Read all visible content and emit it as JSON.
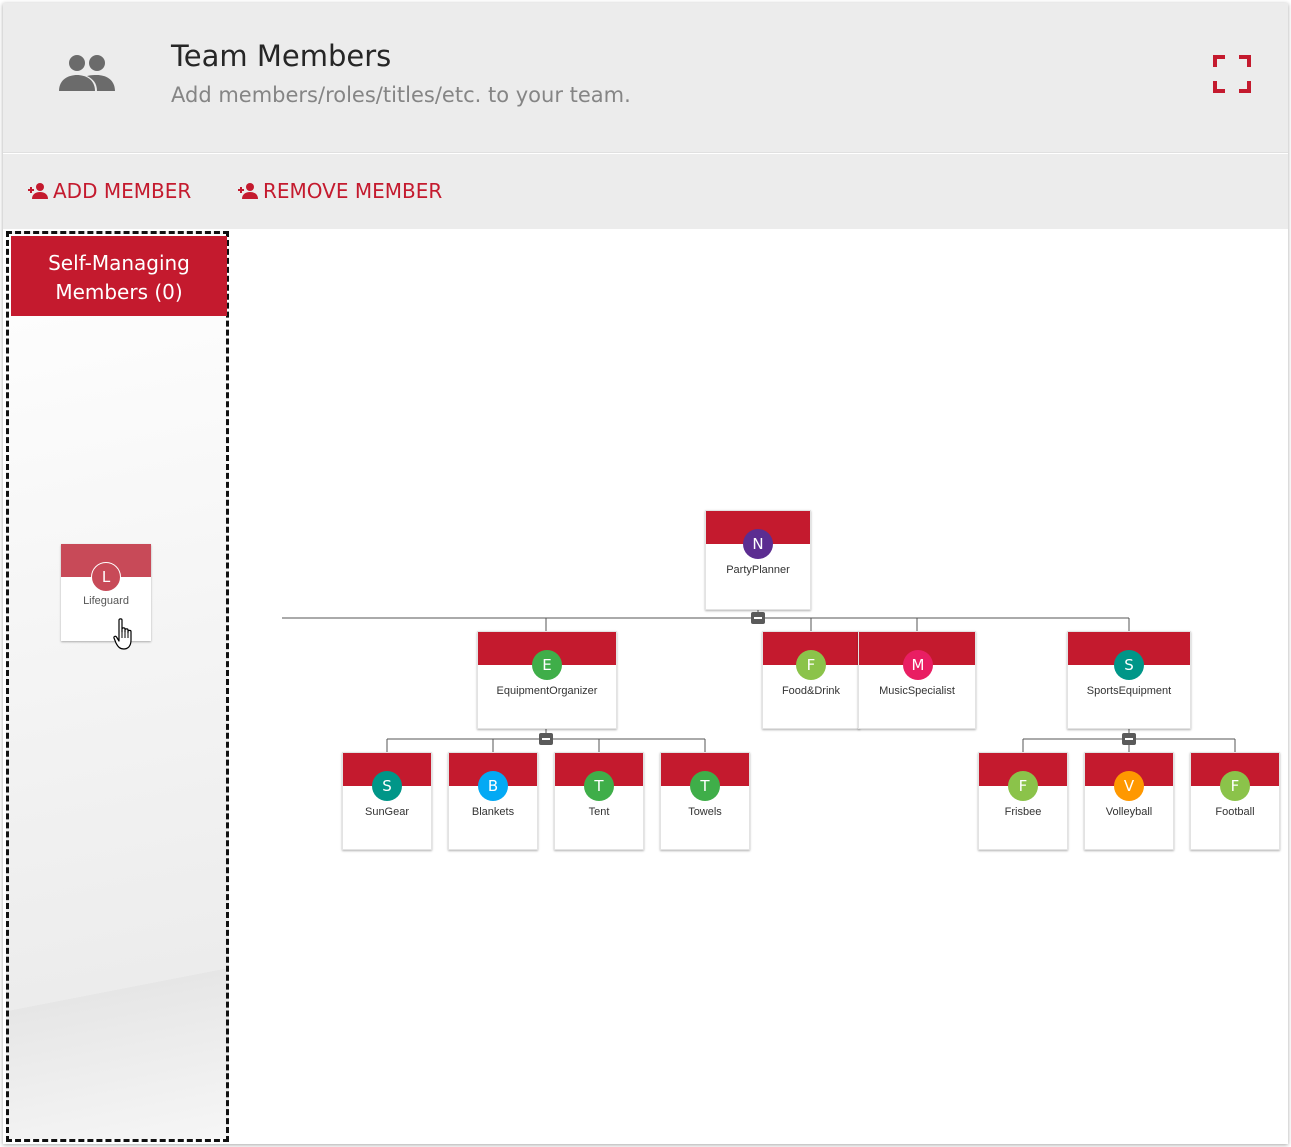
{
  "header": {
    "title": "Team Members",
    "subtitle": "Add members/roles/titles/etc. to your team.",
    "team_icon": "people-icon",
    "fullscreen_icon": "fullscreen-icon"
  },
  "toolbar": {
    "add_label": "ADD MEMBER",
    "remove_label": "REMOVE MEMBER",
    "add_icon": "person-add-icon",
    "remove_icon": "person-add-icon"
  },
  "panel": {
    "title_line1": "Self-Managing",
    "title_line2": "Members (0)"
  },
  "dragged_node": {
    "label": "Lifeguard",
    "initial": "L",
    "color": "#c84a58"
  },
  "colors": {
    "brand": "#c41a2e",
    "toggle": "#5a5a5a",
    "connector": "#555555"
  },
  "org_nodes": [
    {
      "id": "partyplanner",
      "label": "PartyPlanner",
      "initial": "N",
      "color": "#5c2d91"
    },
    {
      "id": "equipment",
      "label": "EquipmentOrganizer",
      "initial": "E",
      "color": "#3fae49"
    },
    {
      "id": "food",
      "label": "Food&Drink",
      "initial": "F",
      "color": "#8bc34a"
    },
    {
      "id": "music",
      "label": "MusicSpecialist",
      "initial": "M",
      "color": "#e91e63"
    },
    {
      "id": "sports",
      "label": "SportsEquipment",
      "initial": "S",
      "color": "#009688"
    },
    {
      "id": "sungear",
      "label": "SunGear",
      "initial": "S",
      "color": "#009688"
    },
    {
      "id": "blankets",
      "label": "Blankets",
      "initial": "B",
      "color": "#03a9f4"
    },
    {
      "id": "tent",
      "label": "Tent",
      "initial": "T",
      "color": "#3fae49"
    },
    {
      "id": "towels",
      "label": "Towels",
      "initial": "T",
      "color": "#3fae49"
    },
    {
      "id": "frisbee",
      "label": "Frisbee",
      "initial": "F",
      "color": "#8bc34a"
    },
    {
      "id": "volleyball",
      "label": "Volleyball",
      "initial": "V",
      "color": "#ff9800"
    },
    {
      "id": "football",
      "label": "Football",
      "initial": "F",
      "color": "#8bc34a"
    }
  ]
}
